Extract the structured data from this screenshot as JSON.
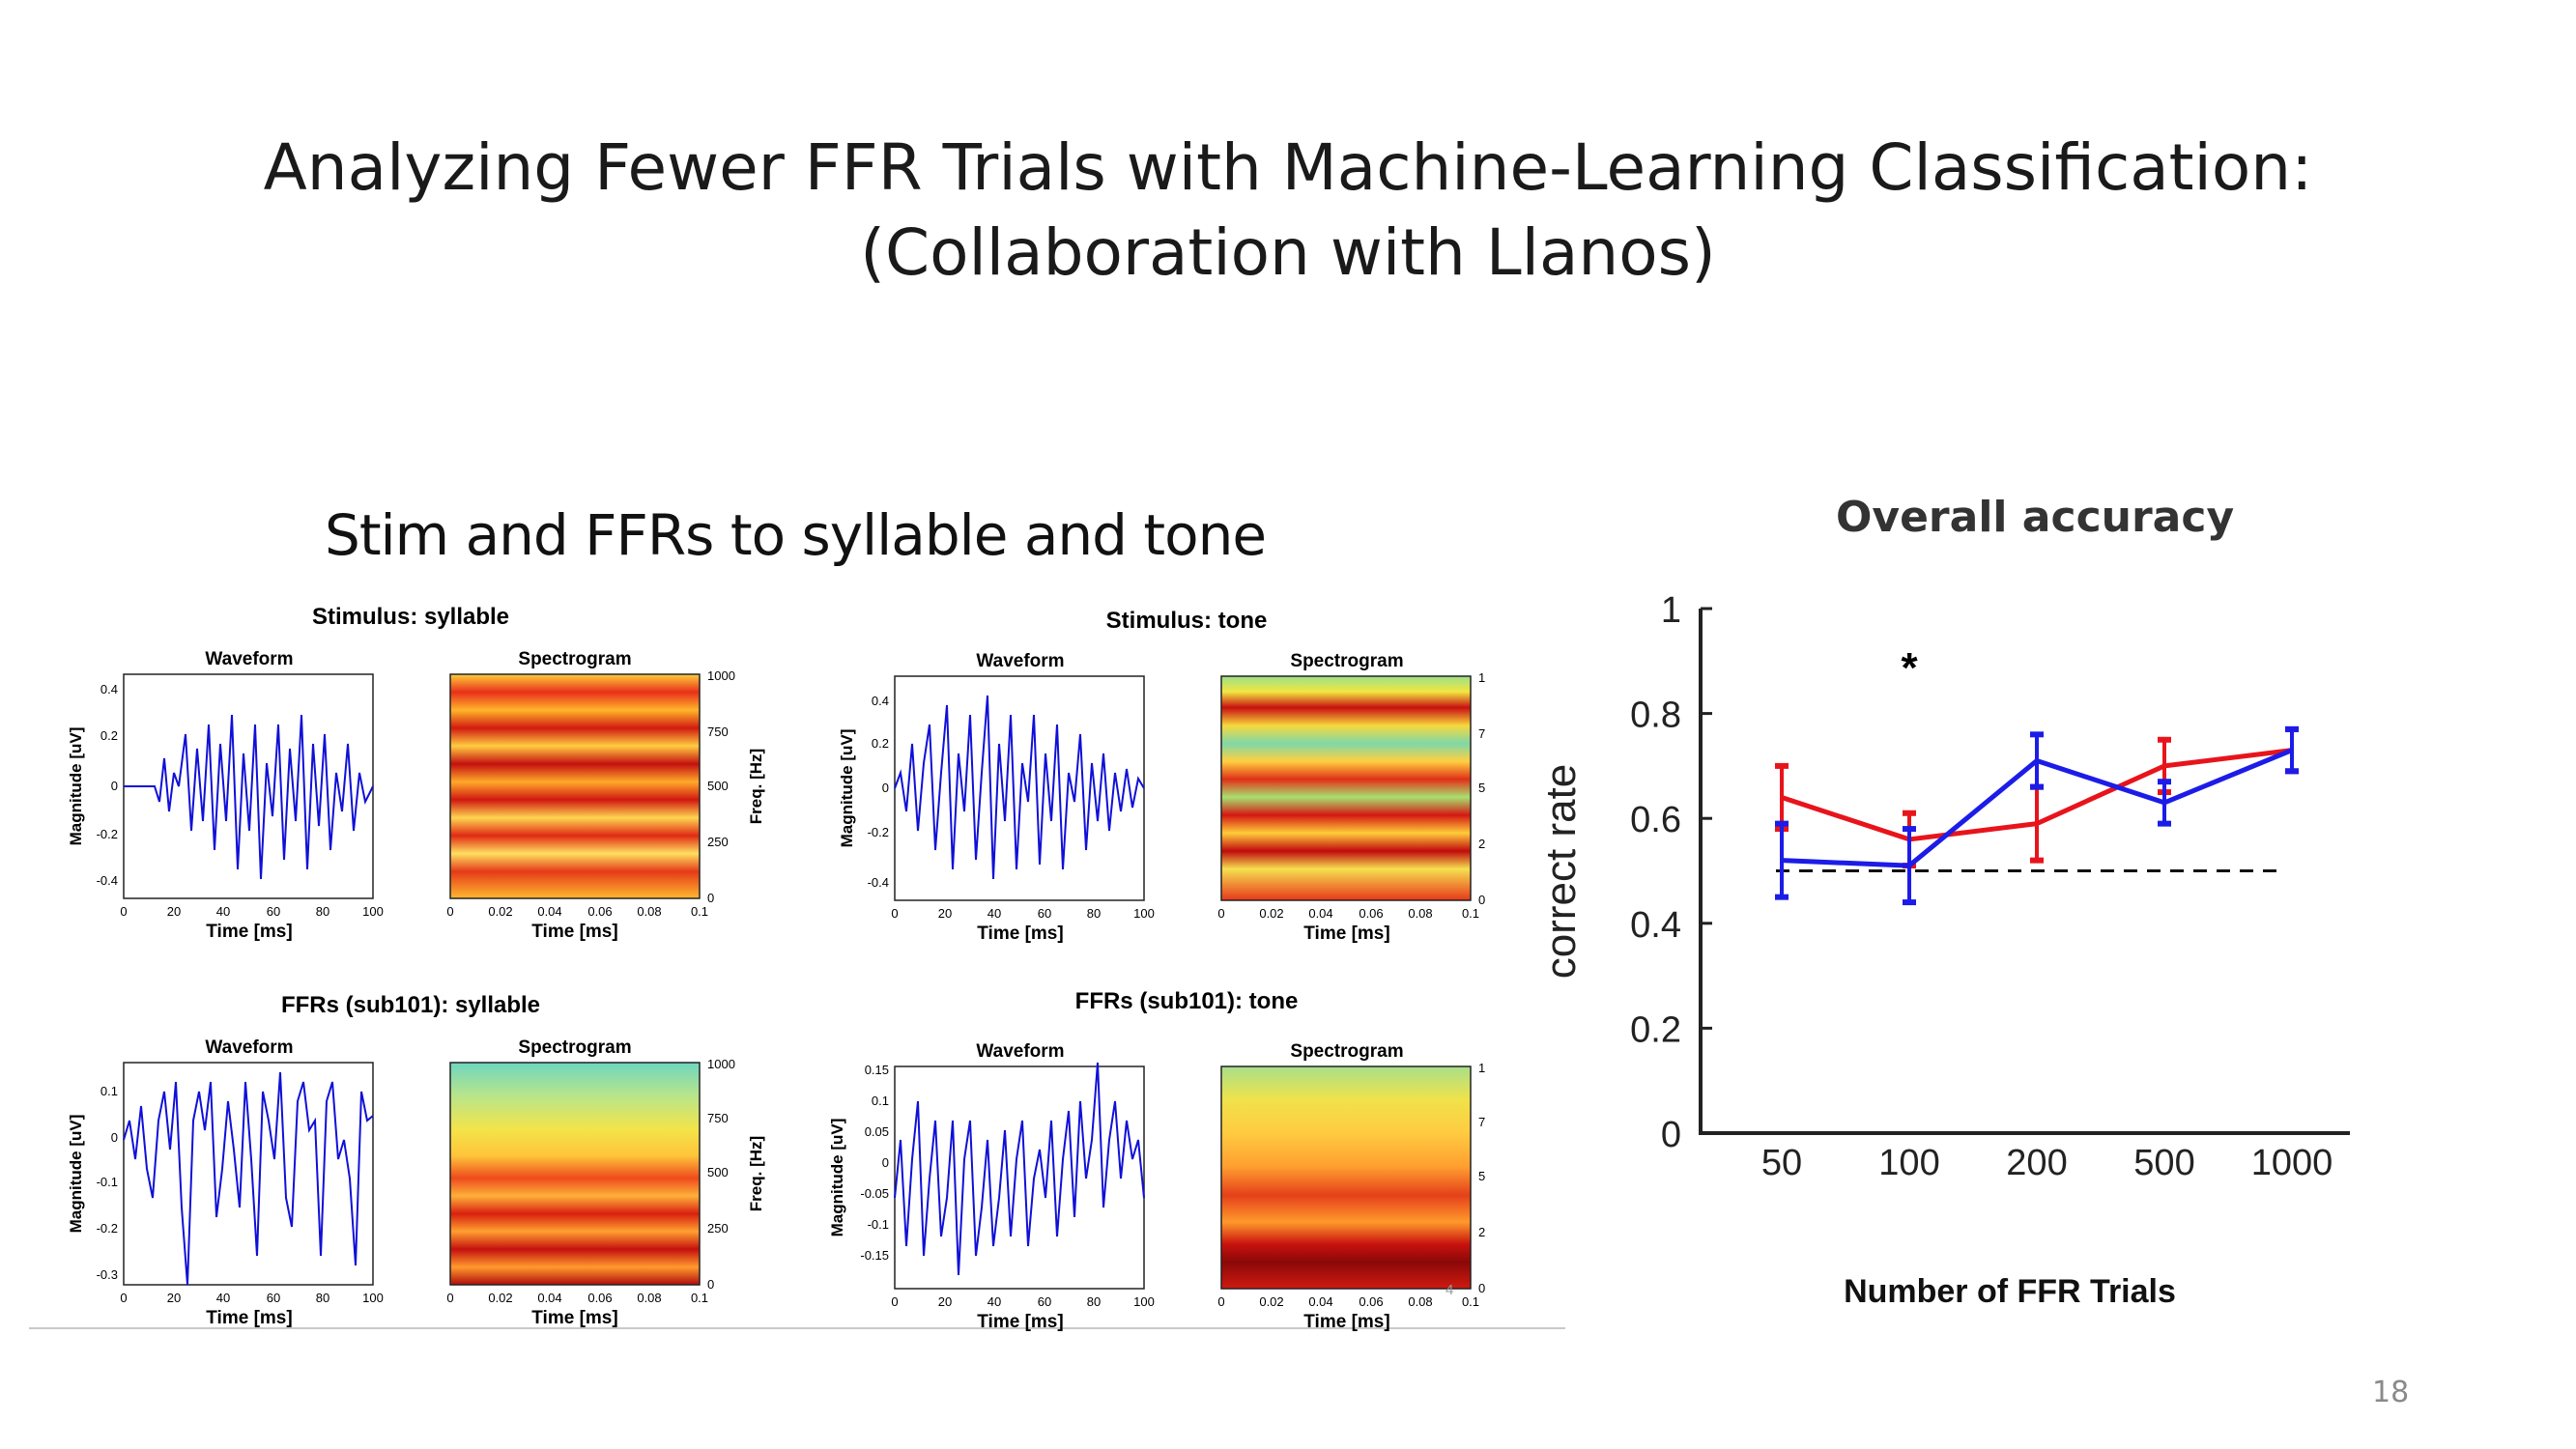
{
  "slide": {
    "title_line1": "Analyzing Fewer FFR Trials with Machine-Learning Classification:",
    "title_line2": "(Collaboration with Llanos)",
    "left_heading": "Stim and FFRs to syllable and tone",
    "slide_number": "18",
    "panel_marker": "4"
  },
  "panels": {
    "stim_syllable": {
      "title": "Stimulus: syllable",
      "wave_title": "Waveform",
      "spec_title": "Spectrogram",
      "ylabel": "Magnitude [uV]",
      "xlabel": "Time [ms]",
      "spec_xlabel": "Time [ms]",
      "freq_label": "Freq. [Hz]",
      "yticks": [
        "0.4",
        "0.2",
        "0",
        "-0.2",
        "-0.4"
      ],
      "xticks": [
        "0",
        "20",
        "40",
        "60",
        "80",
        "100"
      ],
      "spec_xticks": [
        "0",
        "0.02",
        "0.04",
        "0.06",
        "0.08",
        "0.1"
      ],
      "freq_ticks": [
        "1000",
        "750",
        "500",
        "250",
        "0"
      ]
    },
    "stim_tone": {
      "title": "Stimulus: tone",
      "wave_title": "Waveform",
      "spec_title": "Spectrogram",
      "ylabel": "Magnitude [uV]",
      "xlabel": "Time [ms]",
      "spec_xlabel": "Time [ms]",
      "yticks": [
        "0.4",
        "0.2",
        "0",
        "-0.2",
        "-0.4"
      ],
      "xticks": [
        "0",
        "20",
        "40",
        "60",
        "80",
        "100"
      ],
      "spec_xticks": [
        "0",
        "0.02",
        "0.04",
        "0.06",
        "0.08",
        "0.1"
      ],
      "freq_ticks": [
        "1",
        "7",
        "5",
        "2",
        "0"
      ]
    },
    "ffr_syllable": {
      "title": "FFRs (sub101): syllable",
      "wave_title": "Waveform",
      "spec_title": "Spectrogram",
      "ylabel": "Magnitude [uV]",
      "xlabel": "Time [ms]",
      "spec_xlabel": "Time [ms]",
      "freq_label": "Freq. [Hz]",
      "yticks": [
        "0.1",
        "0",
        "-0.1",
        "-0.2",
        "-0.3"
      ],
      "xticks": [
        "0",
        "20",
        "40",
        "60",
        "80",
        "100"
      ],
      "spec_xticks": [
        "0",
        "0.02",
        "0.04",
        "0.06",
        "0.08",
        "0.1"
      ],
      "freq_ticks": [
        "1000",
        "750",
        "500",
        "250",
        "0"
      ]
    },
    "ffr_tone": {
      "title": "FFRs (sub101): tone",
      "wave_title": "Waveform",
      "spec_title": "Spectrogram",
      "ylabel": "Magnitude [uV]",
      "xlabel": "Time [ms]",
      "spec_xlabel": "Time [ms]",
      "yticks": [
        "0.15",
        "0.1",
        "0.05",
        "0",
        "-0.05",
        "-0.1",
        "-0.15"
      ],
      "xticks": [
        "0",
        "20",
        "40",
        "60",
        "80",
        "100"
      ],
      "spec_xticks": [
        "0",
        "0.02",
        "0.04",
        "0.06",
        "0.08",
        "0.1"
      ],
      "freq_ticks": [
        "1",
        "7",
        "5",
        "2",
        "0"
      ]
    }
  },
  "chart_data": {
    "type": "line",
    "title": "Overall accuracy",
    "xlabel": "Number of FFR Trials",
    "ylabel": "correct rate",
    "categories": [
      "50",
      "100",
      "200",
      "500",
      "1000"
    ],
    "ylim": [
      0,
      1
    ],
    "yticks": [
      "0",
      "0.2",
      "0.4",
      "0.6",
      "0.8",
      "1"
    ],
    "series": [
      {
        "color": "#e8141c",
        "values": [
          0.64,
          0.56,
          0.59,
          0.7,
          0.73
        ],
        "error": [
          0.06,
          0.05,
          0.07,
          0.05,
          0.04
        ]
      },
      {
        "color": "#1c1ce8",
        "values": [
          0.52,
          0.51,
          0.71,
          0.63,
          0.73
        ],
        "error": [
          0.07,
          0.07,
          0.05,
          0.04,
          0.04
        ]
      }
    ],
    "chance_level": 0.5,
    "annotations": [
      {
        "text": "*",
        "category": "100"
      }
    ],
    "grid": false
  }
}
